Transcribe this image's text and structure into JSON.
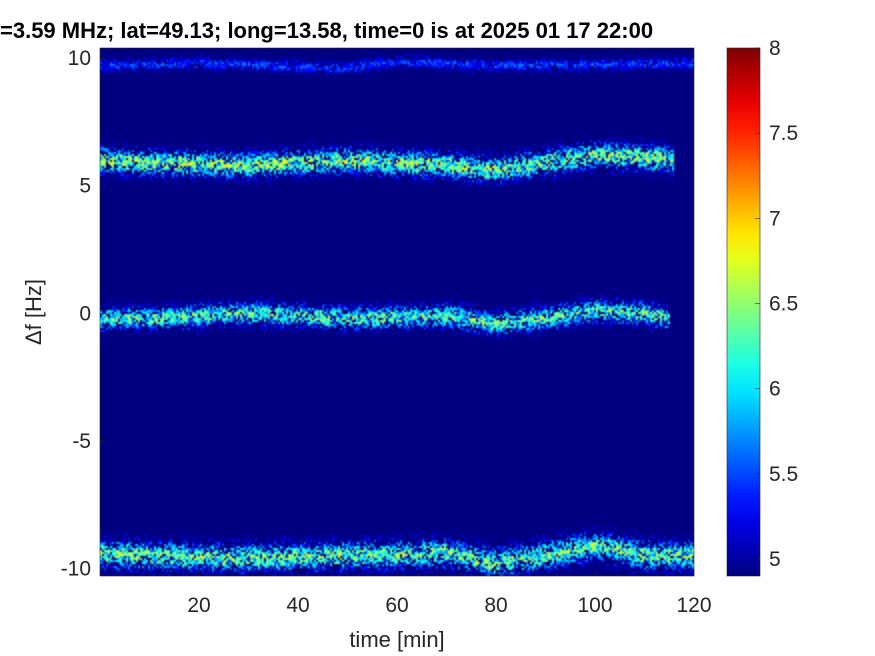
{
  "chart_data": {
    "type": "heatmap",
    "title": "=3.59 MHz;  lat=49.13; long=13.58, time=0 is at 2025 01 17 22:00",
    "xlabel": "time [min]",
    "ylabel": "Δf [Hz]",
    "xlim": [
      0,
      120
    ],
    "ylim": [
      -10.3,
      10.4
    ],
    "x_ticks": [
      {
        "value": 20,
        "label": "20"
      },
      {
        "value": 40,
        "label": "40"
      },
      {
        "value": 60,
        "label": "60"
      },
      {
        "value": 80,
        "label": "80"
      },
      {
        "value": 100,
        "label": "100"
      },
      {
        "value": 120,
        "label": "120"
      }
    ],
    "y_ticks": [
      {
        "value": 10,
        "label": "10"
      },
      {
        "value": 5,
        "label": "5"
      },
      {
        "value": 0,
        "label": "0"
      },
      {
        "value": -5,
        "label": "-5"
      },
      {
        "value": -10,
        "label": "-10"
      }
    ],
    "colorbar": {
      "colormap": "jet",
      "clim": [
        4.9,
        8
      ],
      "ticks": [
        {
          "value": 5,
          "label": "5"
        },
        {
          "value": 5.5,
          "label": "5.5"
        },
        {
          "value": 6,
          "label": "6"
        },
        {
          "value": 6.5,
          "label": "6.5"
        },
        {
          "value": 7,
          "label": "7"
        },
        {
          "value": 7.5,
          "label": "7.5"
        },
        {
          "value": 8,
          "label": "8"
        }
      ]
    },
    "background_value": 4.9,
    "background_color": "#00008f",
    "traces": [
      {
        "offset": -9.5,
        "width": 0.55,
        "peak": 6.9,
        "center": [
          [
            0,
            0.05
          ],
          [
            10,
            0.0
          ],
          [
            30,
            -0.1
          ],
          [
            50,
            0.0
          ],
          [
            70,
            0.1
          ],
          [
            80,
            -0.3
          ],
          [
            90,
            0.0
          ],
          [
            100,
            0.4
          ],
          [
            110,
            0.0
          ],
          [
            120,
            0.0
          ]
        ],
        "x_range": [
          0,
          120
        ]
      },
      {
        "offset": 0,
        "width": 0.45,
        "peak": 6.8,
        "center": [
          [
            0,
            -0.2
          ],
          [
            10,
            -0.2
          ],
          [
            30,
            0.0
          ],
          [
            50,
            -0.2
          ],
          [
            70,
            -0.1
          ],
          [
            80,
            -0.4
          ],
          [
            90,
            -0.2
          ],
          [
            100,
            0.1
          ],
          [
            110,
            0.0
          ],
          [
            115,
            -0.2
          ]
        ],
        "x_range": [
          0,
          115
        ]
      },
      {
        "offset": 5.9,
        "width": 0.5,
        "peak": 7.0,
        "center": [
          [
            0,
            0.1
          ],
          [
            10,
            0.0
          ],
          [
            30,
            -0.1
          ],
          [
            50,
            0.1
          ],
          [
            70,
            -0.1
          ],
          [
            80,
            -0.3
          ],
          [
            90,
            0.0
          ],
          [
            100,
            0.3
          ],
          [
            110,
            0.2
          ],
          [
            116,
            0.1
          ]
        ],
        "x_range": [
          0,
          116
        ]
      },
      {
        "offset": 9.8,
        "width": 0.25,
        "peak": 5.7,
        "center": [
          [
            0,
            -0.1
          ],
          [
            20,
            0.0
          ],
          [
            50,
            -0.2
          ],
          [
            60,
            0.1
          ],
          [
            80,
            -0.1
          ],
          [
            120,
            0.0
          ]
        ],
        "x_range": [
          0,
          120
        ]
      }
    ]
  }
}
